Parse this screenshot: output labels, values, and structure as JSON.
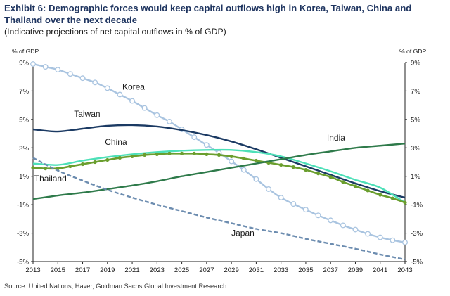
{
  "title": "Exhibit 6: Demographic forces would keep capital outflows high in Korea, Taiwan, China and Thailand over the next decade",
  "subtitle": "(Indicative projections of net capital outflows in % of GDP)",
  "source": "Source: United Nations, Haver, Goldman Sachs Global Investment Research",
  "chart_data": {
    "type": "line",
    "xlabel": "",
    "ylabel_left": "% of GDP",
    "ylabel_right": "% of GDP",
    "xlim": [
      2013,
      2043
    ],
    "ylim": [
      -5,
      9
    ],
    "xticks": [
      2013,
      2015,
      2017,
      2019,
      2021,
      2023,
      2025,
      2027,
      2029,
      2031,
      2033,
      2035,
      2037,
      2039,
      2041,
      2043
    ],
    "yticks": [
      -5,
      -3,
      -1,
      1,
      3,
      5,
      7,
      9
    ],
    "ytick_labels": [
      "-5%",
      "-3%",
      "-1%",
      "1%",
      "3%",
      "5%",
      "7%",
      "9%"
    ],
    "grid": false,
    "series": [
      {
        "name": "Korea",
        "color": "#a9c4e0",
        "marker": "open-circle",
        "label_pos": [
          2020.2,
          7.1
        ],
        "x": [
          2013,
          2014,
          2015,
          2016,
          2017,
          2018,
          2019,
          2020,
          2021,
          2022,
          2023,
          2024,
          2025,
          2026,
          2027,
          2028,
          2029,
          2030,
          2031,
          2032,
          2033,
          2034,
          2035,
          2036,
          2037,
          2038,
          2039,
          2040,
          2041,
          2042,
          2043
        ],
        "values": [
          8.9,
          8.7,
          8.5,
          8.2,
          7.9,
          7.6,
          7.2,
          6.75,
          6.3,
          5.8,
          5.3,
          4.85,
          4.3,
          3.75,
          3.2,
          2.65,
          2.05,
          1.45,
          0.8,
          0.1,
          -0.5,
          -0.95,
          -1.35,
          -1.75,
          -2.1,
          -2.45,
          -2.75,
          -3.05,
          -3.3,
          -3.5,
          -3.65
        ]
      },
      {
        "name": "Taiwan",
        "color": "#1b3a63",
        "marker": "none",
        "label_pos": [
          2016.3,
          5.2
        ],
        "x": [
          2013,
          2015,
          2017,
          2019,
          2021,
          2023,
          2025,
          2027,
          2029,
          2031,
          2033,
          2035,
          2037,
          2039,
          2041,
          2043
        ],
        "values": [
          4.3,
          4.15,
          4.35,
          4.55,
          4.6,
          4.5,
          4.25,
          3.9,
          3.45,
          2.9,
          2.3,
          1.7,
          1.1,
          0.5,
          -0.05,
          -0.5
        ]
      },
      {
        "name": "China",
        "color": "#4de0b8",
        "marker": "none",
        "label_pos": [
          2018.8,
          3.2
        ],
        "x": [
          2013,
          2015,
          2017,
          2019,
          2021,
          2023,
          2025,
          2027,
          2029,
          2031,
          2033,
          2035,
          2037,
          2039,
          2041,
          2043
        ],
        "values": [
          1.9,
          1.8,
          2.1,
          2.35,
          2.55,
          2.7,
          2.8,
          2.85,
          2.85,
          2.7,
          2.4,
          1.9,
          1.35,
          0.75,
          0.2,
          -0.85
        ]
      },
      {
        "name": "Thailand",
        "color": "#6a9e2e",
        "marker": "filled-circle",
        "label_pos": [
          2013.1,
          0.65
        ],
        "x": [
          2013,
          2014,
          2015,
          2016,
          2017,
          2018,
          2019,
          2020,
          2021,
          2022,
          2023,
          2024,
          2025,
          2026,
          2027,
          2028,
          2029,
          2030,
          2031,
          2032,
          2033,
          2034,
          2035,
          2036,
          2037,
          2038,
          2039,
          2040,
          2041,
          2042,
          2043
        ],
        "values": [
          1.6,
          1.55,
          1.55,
          1.7,
          1.85,
          2.0,
          2.15,
          2.3,
          2.4,
          2.5,
          2.55,
          2.6,
          2.6,
          2.6,
          2.55,
          2.5,
          2.4,
          2.25,
          2.1,
          1.95,
          1.8,
          1.65,
          1.45,
          1.2,
          0.95,
          0.6,
          0.3,
          0.0,
          -0.3,
          -0.55,
          -0.85
        ]
      },
      {
        "name": "India",
        "color": "#2e7a4a",
        "marker": "none",
        "label_pos": [
          2036.7,
          3.5
        ],
        "x": [
          2013,
          2015,
          2017,
          2019,
          2021,
          2023,
          2025,
          2027,
          2029,
          2031,
          2033,
          2035,
          2037,
          2039,
          2041,
          2043
        ],
        "values": [
          -0.6,
          -0.35,
          -0.15,
          0.1,
          0.35,
          0.65,
          1.0,
          1.3,
          1.6,
          1.9,
          2.2,
          2.5,
          2.75,
          3.0,
          3.15,
          3.3
        ]
      },
      {
        "name": "Japan",
        "color": "#6d8db0",
        "marker": "none",
        "dashed": true,
        "label_pos": [
          2029.0,
          -3.2
        ],
        "x": [
          2013,
          2015,
          2017,
          2019,
          2021,
          2023,
          2025,
          2027,
          2029,
          2031,
          2033,
          2035,
          2037,
          2039,
          2041,
          2043
        ],
        "values": [
          2.3,
          1.4,
          0.7,
          0.05,
          -0.5,
          -1.0,
          -1.45,
          -1.9,
          -2.3,
          -2.7,
          -3.0,
          -3.4,
          -3.75,
          -4.1,
          -4.5,
          -4.85
        ]
      }
    ]
  }
}
